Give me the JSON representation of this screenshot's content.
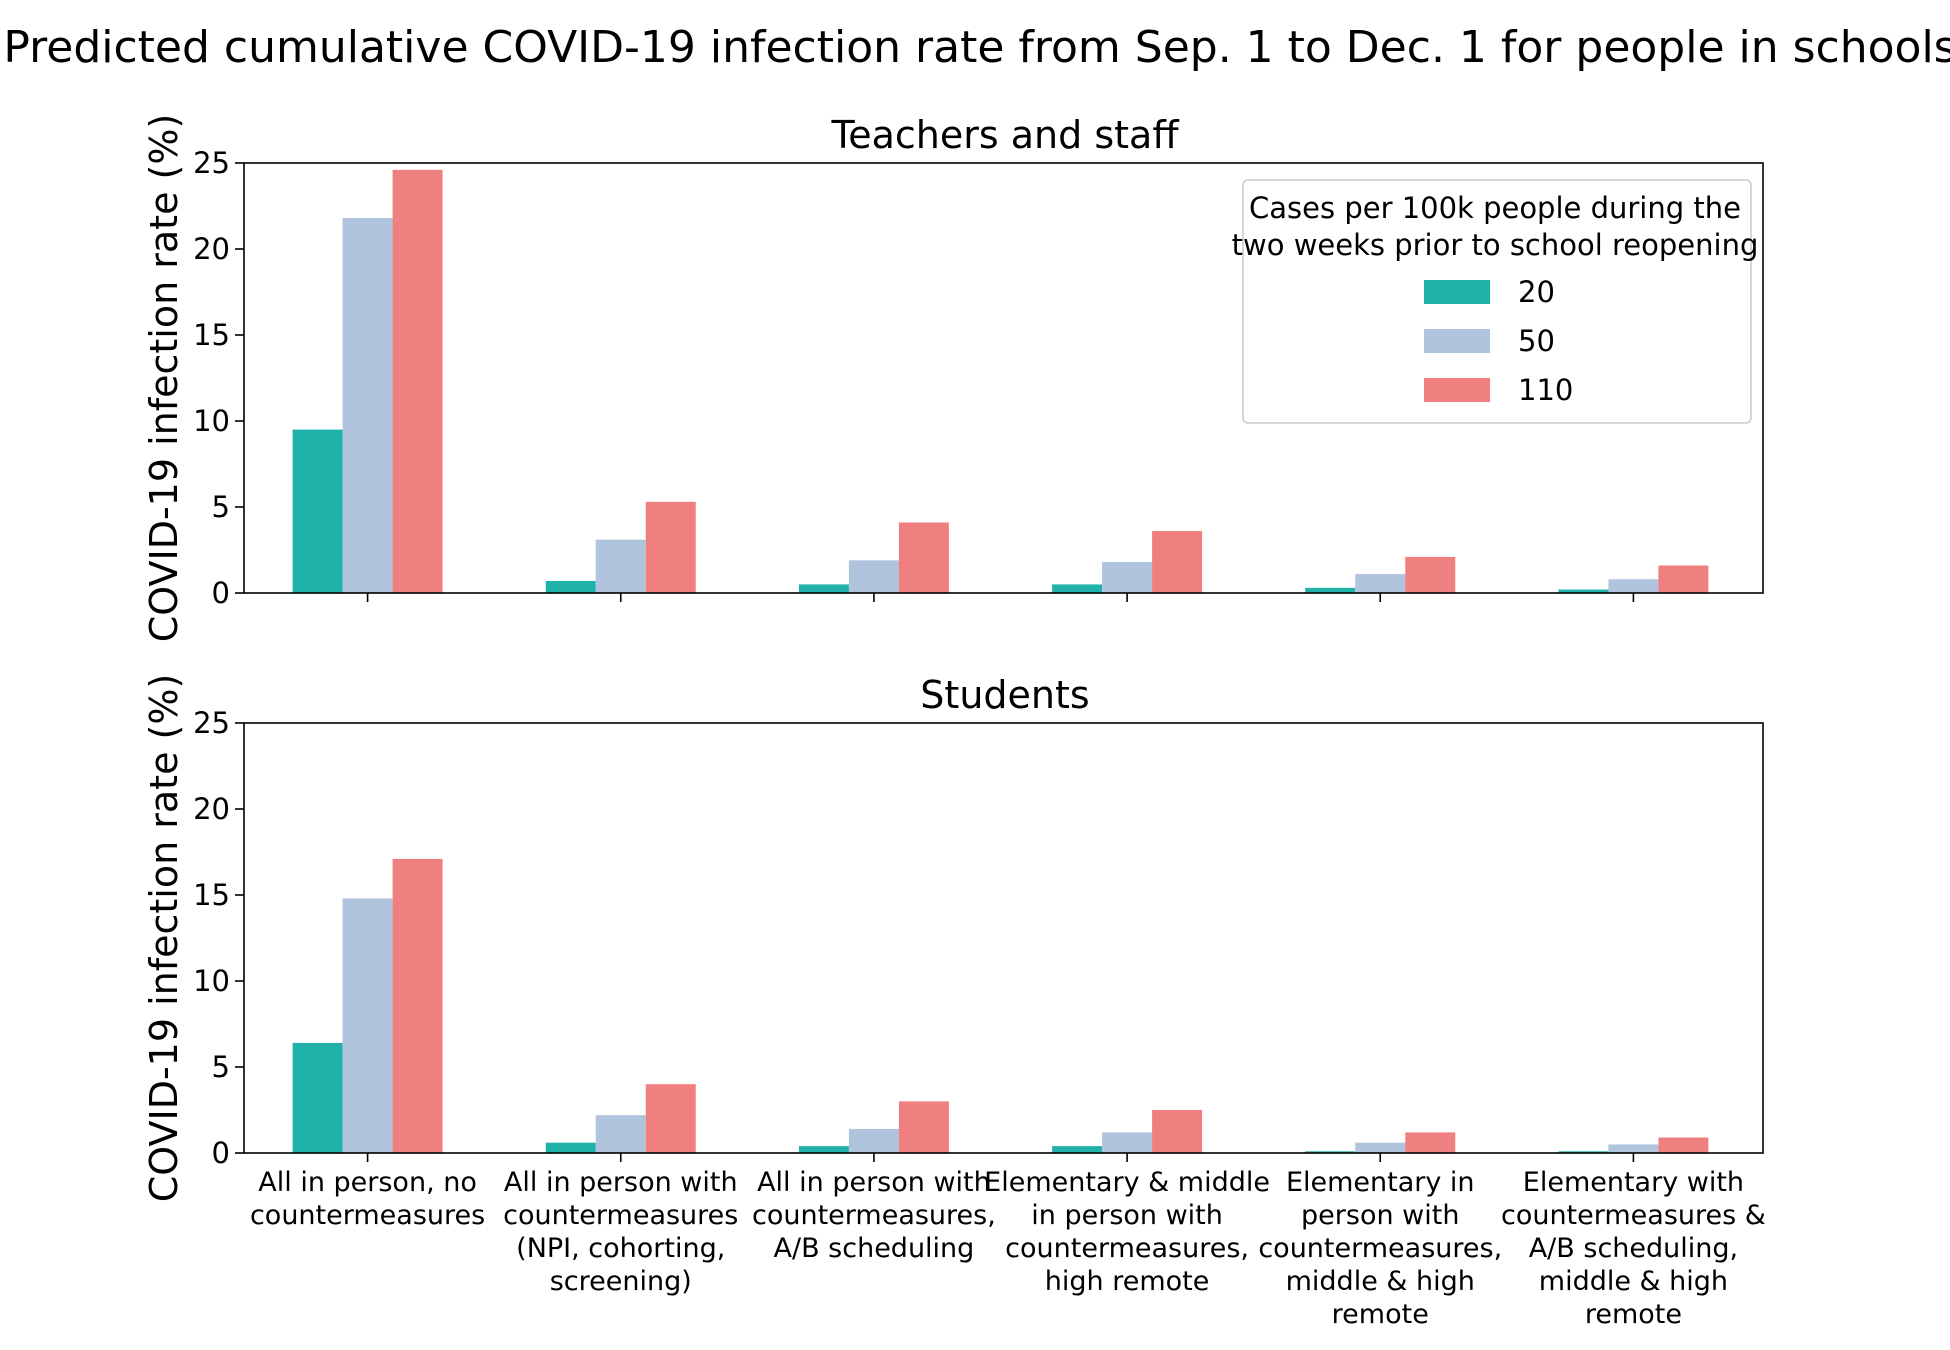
{
  "chart_data": {
    "type": "bar",
    "title": "Predicted cumulative COVID-19 infection rate from Sep. 1 to Dec. 1 for people in schools",
    "categories": [
      "All in person, no countermeasures",
      "All in person with countermeasures (NPI, cohorting, screening)",
      "All in person with countermeasures, A/B scheduling",
      "Elementary & middle in person with countermeasures, high remote",
      "Elementary in person with countermeasures, middle & high remote",
      "Elementary with countermeasures & A/B scheduling, middle & high remote"
    ],
    "category_lines": [
      [
        "All in person, no",
        "countermeasures"
      ],
      [
        "All in person with",
        "countermeasures",
        "(NPI, cohorting,",
        "screening)"
      ],
      [
        "All in person with",
        "countermeasures,",
        "A/B scheduling"
      ],
      [
        "Elementary & middle",
        "in person with",
        "countermeasures,",
        "high remote"
      ],
      [
        "Elementary in",
        "person with",
        "countermeasures,",
        "middle & high",
        "remote"
      ],
      [
        "Elementary with",
        "countermeasures &",
        "A/B scheduling,",
        "middle & high",
        "remote"
      ]
    ],
    "legend": {
      "title_lines": [
        "Cases per 100k people during the",
        "two weeks prior to school reopening"
      ],
      "position": "top-right"
    },
    "colors": [
      "#20b2aa",
      "#b0c4de",
      "#f08080"
    ],
    "panels": [
      {
        "title": "Teachers and staff",
        "ylabel": "COVID-19 infection rate (%)",
        "ylim": [
          0,
          25
        ],
        "yticks": [
          0,
          5,
          10,
          15,
          20,
          25
        ],
        "show_xticklabels": false,
        "show_legend": true,
        "series": [
          {
            "name": "20",
            "values": [
              9.5,
              0.7,
              0.5,
              0.5,
              0.3,
              0.2
            ]
          },
          {
            "name": "50",
            "values": [
              21.8,
              3.1,
              1.9,
              1.8,
              1.1,
              0.8
            ]
          },
          {
            "name": "110",
            "values": [
              24.6,
              5.3,
              4.1,
              3.6,
              2.1,
              1.6
            ]
          }
        ]
      },
      {
        "title": "Students",
        "ylabel": "COVID-19 infection rate (%)",
        "ylim": [
          0,
          25
        ],
        "yticks": [
          0,
          5,
          10,
          15,
          20,
          25
        ],
        "show_xticklabels": true,
        "show_legend": false,
        "series": [
          {
            "name": "20",
            "values": [
              6.4,
              0.6,
              0.4,
              0.4,
              0.1,
              0.1
            ]
          },
          {
            "name": "50",
            "values": [
              14.8,
              2.2,
              1.4,
              1.2,
              0.6,
              0.5
            ]
          },
          {
            "name": "110",
            "values": [
              17.1,
              4.0,
              3.0,
              2.5,
              1.2,
              0.9
            ]
          }
        ]
      }
    ]
  }
}
